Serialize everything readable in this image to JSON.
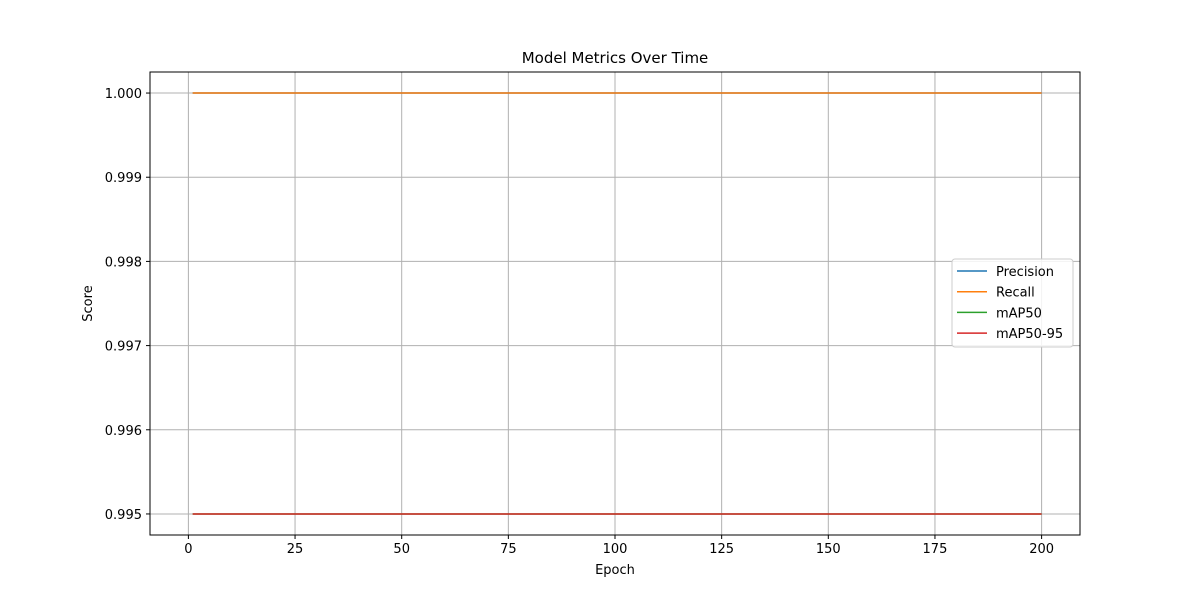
{
  "chart_data": {
    "type": "line",
    "title": "Model Metrics Over Time",
    "xlabel": "Epoch",
    "ylabel": "Score",
    "xlim": [
      -9,
      209
    ],
    "ylim": [
      0.99475,
      1.00025
    ],
    "xticks": [
      0,
      25,
      50,
      75,
      100,
      125,
      150,
      175,
      200
    ],
    "yticks": [
      0.995,
      0.996,
      0.997,
      0.998,
      0.999,
      1.0
    ],
    "ytick_labels": [
      "0.995",
      "0.996",
      "0.997",
      "0.998",
      "0.999",
      "1.000"
    ],
    "grid": true,
    "legend_position": "center-right",
    "series": [
      {
        "name": "Precision",
        "color": "#1f77b4",
        "x": [
          1,
          200
        ],
        "values": [
          1.0,
          1.0
        ]
      },
      {
        "name": "Recall",
        "color": "#ff7f0e",
        "x": [
          1,
          200
        ],
        "values": [
          1.0,
          1.0
        ]
      },
      {
        "name": "mAP50",
        "color": "#2ca02c",
        "x": [
          1,
          200
        ],
        "values": [
          0.995,
          0.995
        ]
      },
      {
        "name": "mAP50-95",
        "color": "#d62728",
        "x": [
          1,
          200
        ],
        "values": [
          0.995,
          0.995
        ]
      }
    ]
  }
}
